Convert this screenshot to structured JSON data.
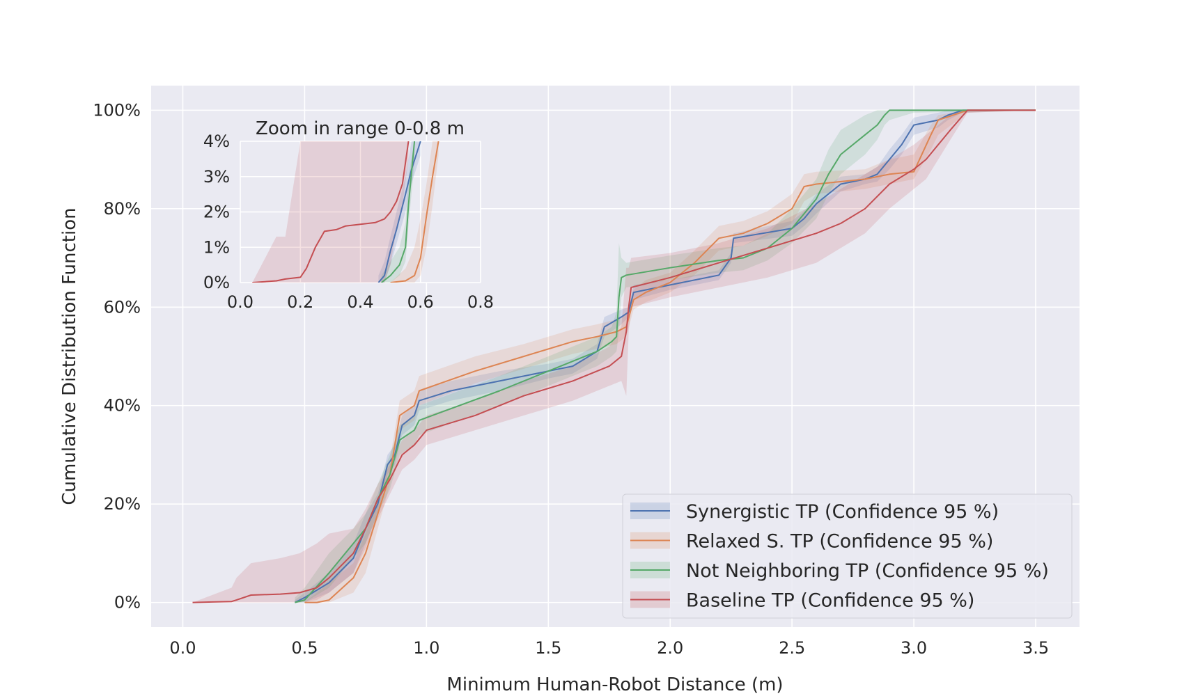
{
  "chart_data": {
    "type": "line",
    "xlabel": "Minimum Human-Robot Distance (m)",
    "ylabel": "Cumulative Distribution Function",
    "xlim": [
      -0.13,
      3.68
    ],
    "ylim": [
      -0.05,
      1.05
    ],
    "xticks": [
      0.0,
      0.5,
      1.0,
      1.5,
      2.0,
      2.5,
      3.0,
      3.5
    ],
    "xtick_labels": [
      "0.0",
      "0.5",
      "1.0",
      "1.5",
      "2.0",
      "2.5",
      "3.0",
      "3.5"
    ],
    "yticks": [
      0,
      0.2,
      0.4,
      0.6,
      0.8,
      1.0
    ],
    "ytick_labels": [
      "0%",
      "20%",
      "40%",
      "60%",
      "80%",
      "100%"
    ],
    "grid": true,
    "legend_position": "bottom-right",
    "series": [
      {
        "name": "Synergistic TP (Confidence 95 %)",
        "color": "#4c72b0",
        "x": [
          0.46,
          0.5,
          0.6,
          0.7,
          0.75,
          0.8,
          0.84,
          0.87,
          0.9,
          0.95,
          0.97,
          1.1,
          1.3,
          1.5,
          1.6,
          1.7,
          1.73,
          1.8,
          1.83,
          1.85,
          2.0,
          2.2,
          2.25,
          2.26,
          2.5,
          2.55,
          2.6,
          2.7,
          2.8,
          2.85,
          2.9,
          2.95,
          3.0,
          3.1,
          3.14,
          3.2,
          3.5
        ],
        "y": [
          0,
          0.01,
          0.04,
          0.09,
          0.15,
          0.2,
          0.28,
          0.3,
          0.36,
          0.38,
          0.41,
          0.43,
          0.45,
          0.47,
          0.48,
          0.51,
          0.56,
          0.58,
          0.59,
          0.63,
          0.645,
          0.665,
          0.7,
          0.74,
          0.76,
          0.78,
          0.81,
          0.85,
          0.86,
          0.87,
          0.9,
          0.93,
          0.97,
          0.98,
          0.99,
          1.0,
          1.0
        ],
        "ci_low": [
          0,
          0,
          0.02,
          0.06,
          0.12,
          0.18,
          0.26,
          0.28,
          0.34,
          0.36,
          0.39,
          0.41,
          0.43,
          0.455,
          0.465,
          0.495,
          0.54,
          0.565,
          0.58,
          0.615,
          0.635,
          0.655,
          0.69,
          0.73,
          0.745,
          0.765,
          0.79,
          0.835,
          0.85,
          0.855,
          0.88,
          0.91,
          0.95,
          0.965,
          0.98,
          0.995,
          1.0
        ],
        "ci_high": [
          0.005,
          0.02,
          0.06,
          0.12,
          0.18,
          0.22,
          0.3,
          0.32,
          0.38,
          0.4,
          0.43,
          0.45,
          0.47,
          0.485,
          0.495,
          0.525,
          0.58,
          0.595,
          0.6,
          0.645,
          0.655,
          0.675,
          0.71,
          0.75,
          0.775,
          0.795,
          0.83,
          0.865,
          0.87,
          0.885,
          0.92,
          0.95,
          0.985,
          0.995,
          1.0,
          1.0,
          1.0
        ]
      },
      {
        "name": "Relaxed S. TP (Confidence 95 %)",
        "color": "#dd8452",
        "x": [
          0.5,
          0.55,
          0.6,
          0.7,
          0.75,
          0.8,
          0.85,
          0.89,
          0.95,
          0.97,
          1.2,
          1.4,
          1.6,
          1.7,
          1.78,
          1.82,
          1.85,
          1.9,
          2.0,
          2.1,
          2.2,
          2.3,
          2.4,
          2.5,
          2.55,
          2.6,
          2.8,
          2.9,
          3.0,
          3.07,
          3.1,
          3.22,
          3.5
        ],
        "y": [
          0,
          0.0,
          0.005,
          0.05,
          0.1,
          0.18,
          0.26,
          0.38,
          0.4,
          0.43,
          0.47,
          0.5,
          0.53,
          0.54,
          0.55,
          0.56,
          0.615,
          0.63,
          0.65,
          0.69,
          0.74,
          0.75,
          0.77,
          0.8,
          0.845,
          0.85,
          0.86,
          0.87,
          0.875,
          0.95,
          0.98,
          1.0,
          1.0
        ],
        "ci_low": [
          0,
          0,
          0.0,
          0.02,
          0.06,
          0.15,
          0.24,
          0.35,
          0.37,
          0.4,
          0.445,
          0.475,
          0.505,
          0.515,
          0.525,
          0.54,
          0.595,
          0.61,
          0.63,
          0.665,
          0.715,
          0.725,
          0.745,
          0.77,
          0.815,
          0.83,
          0.84,
          0.85,
          0.86,
          0.92,
          0.95,
          0.995,
          1.0
        ],
        "ci_high": [
          0.0,
          0.02,
          0.04,
          0.08,
          0.14,
          0.21,
          0.29,
          0.41,
          0.43,
          0.46,
          0.5,
          0.525,
          0.555,
          0.565,
          0.575,
          0.585,
          0.635,
          0.655,
          0.67,
          0.715,
          0.765,
          0.775,
          0.795,
          0.83,
          0.87,
          0.875,
          0.88,
          0.9,
          0.91,
          0.97,
          0.99,
          1.0,
          1.0
        ]
      },
      {
        "name": "Not Neighboring TP (Confidence 95 %)",
        "color": "#55a868",
        "x": [
          0.46,
          0.5,
          0.6,
          0.7,
          0.75,
          0.8,
          0.85,
          0.89,
          0.95,
          0.97,
          1.3,
          1.5,
          1.7,
          1.76,
          1.78,
          1.79,
          1.8,
          1.82,
          2.0,
          2.2,
          2.3,
          2.4,
          2.5,
          2.6,
          2.65,
          2.7,
          2.8,
          2.85,
          2.88,
          2.9,
          3.0,
          3.5
        ],
        "y": [
          0,
          0.005,
          0.06,
          0.12,
          0.15,
          0.21,
          0.26,
          0.33,
          0.35,
          0.37,
          0.43,
          0.47,
          0.51,
          0.53,
          0.54,
          0.62,
          0.66,
          0.665,
          0.68,
          0.695,
          0.7,
          0.72,
          0.76,
          0.82,
          0.87,
          0.91,
          0.95,
          0.97,
          0.99,
          1.0,
          1.0,
          1.0
        ],
        "ci_low": [
          0,
          0,
          0.03,
          0.09,
          0.12,
          0.18,
          0.23,
          0.3,
          0.32,
          0.34,
          0.4,
          0.44,
          0.48,
          0.5,
          0.51,
          0.55,
          0.62,
          0.64,
          0.655,
          0.67,
          0.675,
          0.695,
          0.73,
          0.78,
          0.83,
          0.87,
          0.91,
          0.94,
          0.97,
          0.98,
          0.995,
          1.0
        ],
        "ci_high": [
          0.01,
          0.03,
          0.1,
          0.15,
          0.18,
          0.24,
          0.3,
          0.36,
          0.38,
          0.4,
          0.46,
          0.5,
          0.54,
          0.56,
          0.59,
          0.73,
          0.7,
          0.69,
          0.705,
          0.72,
          0.725,
          0.75,
          0.8,
          0.86,
          0.92,
          0.96,
          0.99,
          1.0,
          1.0,
          1.0,
          1.0,
          1.0
        ]
      },
      {
        "name": "Baseline TP (Confidence 95 %)",
        "color": "#c44e52",
        "x": [
          0.04,
          0.12,
          0.2,
          0.22,
          0.28,
          0.4,
          0.48,
          0.55,
          0.6,
          0.7,
          0.75,
          0.8,
          0.85,
          0.9,
          0.95,
          1.0,
          1.2,
          1.4,
          1.6,
          1.75,
          1.8,
          1.82,
          1.83,
          1.84,
          2.0,
          2.2,
          2.4,
          2.6,
          2.7,
          2.8,
          2.9,
          3.0,
          3.05,
          3.1,
          3.15,
          3.22,
          3.5
        ],
        "y": [
          0,
          0.001,
          0.002,
          0.005,
          0.015,
          0.017,
          0.02,
          0.03,
          0.05,
          0.1,
          0.15,
          0.21,
          0.25,
          0.3,
          0.32,
          0.35,
          0.38,
          0.42,
          0.45,
          0.48,
          0.5,
          0.55,
          0.6,
          0.64,
          0.66,
          0.69,
          0.72,
          0.75,
          0.77,
          0.8,
          0.85,
          0.88,
          0.9,
          0.93,
          0.96,
          1.0,
          1.0
        ],
        "ci_low": [
          0,
          0,
          0,
          0,
          0,
          0.0,
          0.0,
          0.005,
          0.02,
          0.06,
          0.11,
          0.17,
          0.22,
          0.27,
          0.29,
          0.32,
          0.35,
          0.38,
          0.41,
          0.44,
          0.45,
          0.42,
          0.55,
          0.6,
          0.62,
          0.64,
          0.66,
          0.69,
          0.72,
          0.75,
          0.8,
          0.84,
          0.86,
          0.9,
          0.94,
          0.995,
          1.0
        ],
        "ci_high": [
          0.0,
          0.015,
          0.03,
          0.05,
          0.08,
          0.09,
          0.1,
          0.12,
          0.14,
          0.15,
          0.19,
          0.24,
          0.28,
          0.33,
          0.35,
          0.38,
          0.41,
          0.45,
          0.48,
          0.52,
          0.56,
          0.68,
          0.68,
          0.7,
          0.71,
          0.73,
          0.76,
          0.81,
          0.84,
          0.87,
          0.9,
          0.93,
          0.95,
          0.97,
          0.99,
          1.0,
          1.0
        ]
      }
    ],
    "inset": {
      "title": "Zoom in range 0-0.8 m",
      "xlim": [
        0.0,
        0.8
      ],
      "ylim": [
        0.0,
        0.04
      ],
      "xticks": [
        0.0,
        0.2,
        0.4,
        0.6,
        0.8
      ],
      "xtick_labels": [
        "0.0",
        "0.2",
        "0.4",
        "0.6",
        "0.8"
      ],
      "yticks": [
        0,
        0.01,
        0.02,
        0.03,
        0.04
      ],
      "ytick_labels": [
        "0%",
        "1%",
        "2%",
        "3%",
        "4%"
      ],
      "series": [
        {
          "name": "Synergistic TP (Confidence 95 %)",
          "color": "#4c72b0",
          "x": [
            0.46,
            0.48,
            0.5,
            0.52,
            0.55,
            0.57,
            0.6
          ],
          "y": [
            0,
            0.002,
            0.009,
            0.015,
            0.025,
            0.032,
            0.04
          ],
          "ci_low": [
            0,
            0.0,
            0.005,
            0.011,
            0.02,
            0.028,
            0.036
          ],
          "ci_high": [
            0.002,
            0.006,
            0.013,
            0.02,
            0.03,
            0.04,
            0.04
          ]
        },
        {
          "name": "Relaxed S. TP (Confidence 95 %)",
          "color": "#dd8452",
          "x": [
            0.5,
            0.55,
            0.58,
            0.6,
            0.62,
            0.64,
            0.66
          ],
          "y": [
            0,
            0.0005,
            0.002,
            0.007,
            0.019,
            0.03,
            0.04
          ],
          "ci_low": [
            0,
            0,
            0.0,
            0.002,
            0.01,
            0.022,
            0.036
          ],
          "ci_high": [
            0.0,
            0.004,
            0.01,
            0.018,
            0.028,
            0.04,
            0.04
          ]
        },
        {
          "name": "Not Neighboring TP (Confidence 95 %)",
          "color": "#55a868",
          "x": [
            0.47,
            0.5,
            0.53,
            0.55,
            0.56,
            0.58
          ],
          "y": [
            0,
            0.002,
            0.005,
            0.01,
            0.022,
            0.04
          ],
          "ci_low": [
            0,
            0,
            0.002,
            0.006,
            0.016,
            0.034
          ],
          "ci_high": [
            0.002,
            0.006,
            0.01,
            0.017,
            0.03,
            0.04
          ]
        },
        {
          "name": "Baseline TP (Confidence 95 %)",
          "color": "#c44e52",
          "x": [
            0.04,
            0.12,
            0.15,
            0.2,
            0.22,
            0.25,
            0.28,
            0.32,
            0.35,
            0.4,
            0.45,
            0.48,
            0.5,
            0.52,
            0.54,
            0.56
          ],
          "y": [
            0,
            0.0005,
            0.001,
            0.0015,
            0.004,
            0.01,
            0.0145,
            0.015,
            0.016,
            0.0165,
            0.017,
            0.018,
            0.02,
            0.023,
            0.028,
            0.04
          ],
          "ci_low": [
            0,
            0,
            0,
            0,
            0.0,
            0.0,
            0.0,
            0.0,
            0.0,
            0.0,
            0.0,
            0.0,
            0.005,
            0.015,
            0.022,
            0.035
          ],
          "ci_high": [
            0.0,
            0.013,
            0.013,
            0.04,
            0.04,
            0.04,
            0.04,
            0.04,
            0.04,
            0.04,
            0.04,
            0.04,
            0.04,
            0.04,
            0.04,
            0.04
          ]
        }
      ]
    }
  }
}
